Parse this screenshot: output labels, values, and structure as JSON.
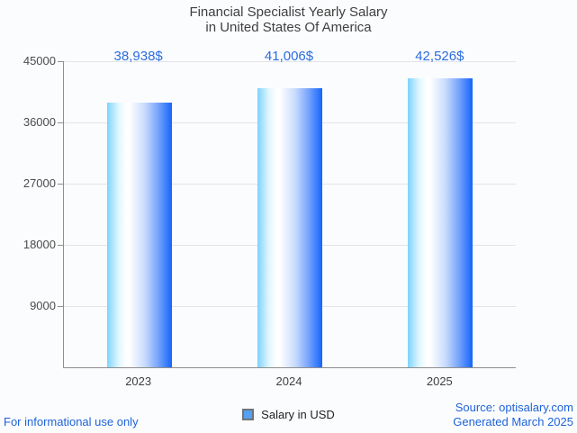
{
  "title": {
    "line1": "Financial Specialist Yearly Salary",
    "line2": "in United States Of America"
  },
  "chart_data": {
    "type": "bar",
    "title": "Financial Specialist Yearly Salary in United States Of America",
    "categories": [
      "2023",
      "2024",
      "2025"
    ],
    "series": [
      {
        "name": "Salary in USD",
        "values": [
          38938,
          41006,
          42526
        ]
      }
    ],
    "value_labels": [
      "38,938$",
      "41,006$",
      "42,526$"
    ],
    "xlabel": "",
    "ylabel": "",
    "ylim": [
      0,
      45000
    ],
    "yticks": [
      9000,
      18000,
      27000,
      36000,
      45000
    ],
    "grid": true,
    "legend_position": "bottom"
  },
  "legend": {
    "label": "Salary in USD"
  },
  "footer": {
    "left": "For informational use only",
    "source": "Source: optisalary.com",
    "generated": "Generated March 2025"
  },
  "colors": {
    "annotation_blue": "#2a6ce0",
    "footer_blue": "#1e63d8",
    "bar_gradient_left": "#7fd3fc",
    "bar_gradient_mid": "#ffffff",
    "bar_gradient_right": "#1465fb",
    "legend_swatch_fill": "#55a0f1",
    "legend_swatch_border": "#70747a",
    "axis_line": "#8f8f8f",
    "gridline": "#e2e4e9",
    "background": "#fbfcfe",
    "title_text": "#3f3f3f"
  }
}
